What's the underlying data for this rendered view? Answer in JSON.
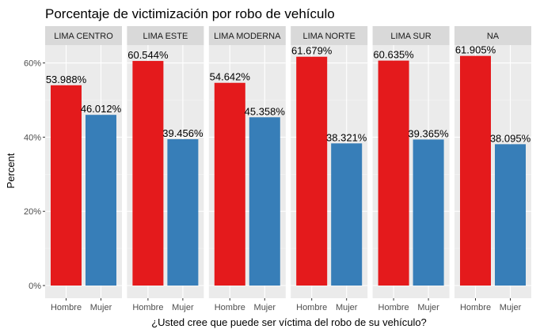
{
  "chart_data": {
    "type": "bar",
    "title": "Porcentaje de victimización por robo de vehículo",
    "xlabel": "¿Usted cree que puede ser víctima del robo de su vehículo?",
    "ylabel": "Percent",
    "ylim": [
      0,
      0.68
    ],
    "yticks": [
      0,
      0.2,
      0.4,
      0.6
    ],
    "ytick_labels": [
      "0%",
      "20%",
      "40%",
      "60%"
    ],
    "categories": [
      "Hombre",
      "Mujer"
    ],
    "colors": {
      "Hombre": "#E41A1C",
      "Mujer": "#377EB8"
    },
    "grid": true,
    "facets": [
      {
        "name": "LIMA CENTRO",
        "values": [
          0.53988,
          0.46012
        ],
        "labels": [
          "53.988%",
          "46.012%"
        ]
      },
      {
        "name": "LIMA ESTE",
        "values": [
          0.60544,
          0.39456
        ],
        "labels": [
          "60.544%",
          "39.456%"
        ]
      },
      {
        "name": "LIMA MODERNA",
        "values": [
          0.54642,
          0.45358
        ],
        "labels": [
          "54.642%",
          "45.358%"
        ]
      },
      {
        "name": "LIMA NORTE",
        "values": [
          0.61679,
          0.38321
        ],
        "labels": [
          "61.679%",
          "38.321%"
        ]
      },
      {
        "name": "LIMA SUR",
        "values": [
          0.60635,
          0.39365
        ],
        "labels": [
          "60.635%",
          "39.365%"
        ]
      },
      {
        "name": "NA",
        "values": [
          0.61905,
          0.38095
        ],
        "labels": [
          "61.905%",
          "38.095%"
        ]
      }
    ]
  }
}
